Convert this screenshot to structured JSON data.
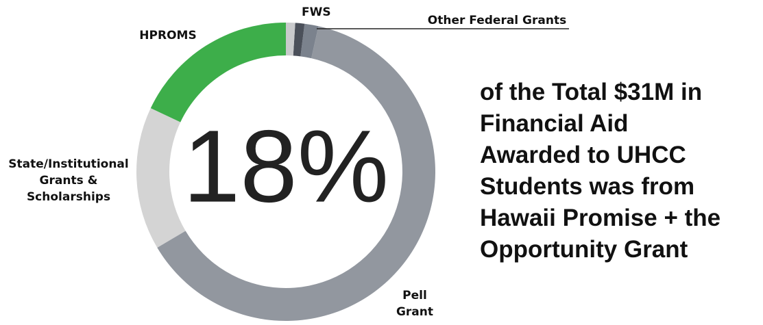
{
  "chart_data": {
    "type": "donut",
    "categories": [
      null,
      "FWS",
      "Other Federal Grants",
      "Pell Grant",
      "State/Institutional Grants & Scholarships",
      "HPROMS"
    ],
    "values": [
      1,
      1,
      1.5,
      63,
      15.5,
      18
    ],
    "colors": [
      "#c9cacc",
      "#4b505a",
      "#7b828d",
      "#92979f",
      "#d4d4d4",
      "#3dae4a"
    ],
    "center_label": "18%",
    "annotation_lines": [
      "of the Total $31M in",
      "Financial Aid",
      "Awarded to UHCC",
      "Students was from",
      "Hawaii Promise + the",
      "Opportunity Grant"
    ]
  }
}
